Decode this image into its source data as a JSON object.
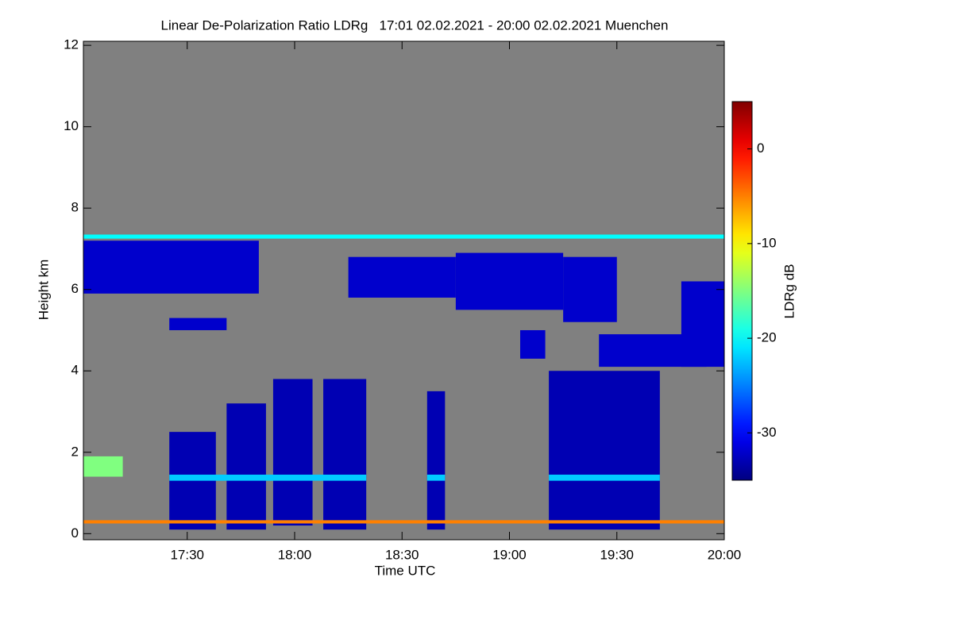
{
  "chart_data": {
    "type": "heatmap",
    "title": "Linear De-Polarization Ratio LDRg   17:01 02.02.2021 - 20:00 02.02.2021 Muenchen",
    "xlabel": "Time UTC",
    "ylabel": "Height km",
    "background": "#808080",
    "xlim": [
      "2021-02-02T17:01",
      "2021-02-02T20:00"
    ],
    "xticks": [
      {
        "value": "2021-02-02T17:30",
        "label": "17:30"
      },
      {
        "value": "2021-02-02T18:00",
        "label": "18:00"
      },
      {
        "value": "2021-02-02T18:30",
        "label": "18:30"
      },
      {
        "value": "2021-02-02T19:00",
        "label": "19:00"
      },
      {
        "value": "2021-02-02T19:30",
        "label": "19:30"
      },
      {
        "value": "2021-02-02T20:00",
        "label": "20:00"
      }
    ],
    "ylim": [
      -0.15,
      12.1
    ],
    "yticks": [
      0,
      2,
      4,
      6,
      8,
      10,
      12
    ],
    "colorbar": {
      "label": "LDRg dB",
      "lim": [
        -35,
        5
      ],
      "ticks": [
        0,
        -10,
        -20,
        -30
      ],
      "colormap": "jet"
    },
    "regions": [
      {
        "x": [
          "2021-02-02T17:01",
          "2021-02-02T20:00"
        ],
        "y": [
          7.25,
          7.35
        ],
        "value": -20
      },
      {
        "x": [
          "2021-02-02T17:01",
          "2021-02-02T17:50"
        ],
        "y": [
          5.9,
          7.2
        ],
        "value": -32
      },
      {
        "x": [
          "2021-02-02T17:25",
          "2021-02-02T17:41"
        ],
        "y": [
          5.0,
          5.3
        ],
        "value": -32
      },
      {
        "x": [
          "2021-02-02T18:15",
          "2021-02-02T18:45"
        ],
        "y": [
          5.8,
          6.8
        ],
        "value": -32
      },
      {
        "x": [
          "2021-02-02T18:45",
          "2021-02-02T19:15"
        ],
        "y": [
          5.5,
          6.9
        ],
        "value": -32
      },
      {
        "x": [
          "2021-02-02T19:15",
          "2021-02-02T19:30"
        ],
        "y": [
          5.2,
          6.8
        ],
        "value": -32
      },
      {
        "x": [
          "2021-02-02T19:03",
          "2021-02-02T19:10"
        ],
        "y": [
          4.3,
          5.0
        ],
        "value": -32
      },
      {
        "x": [
          "2021-02-02T19:25",
          "2021-02-02T19:55"
        ],
        "y": [
          4.1,
          4.9
        ],
        "value": -32
      },
      {
        "x": [
          "2021-02-02T19:48",
          "2021-02-02T20:00"
        ],
        "y": [
          4.1,
          6.2
        ],
        "value": -32
      },
      {
        "x": [
          "2021-02-02T17:01",
          "2021-02-02T17:12"
        ],
        "y": [
          1.4,
          1.9
        ],
        "value": -15
      },
      {
        "x": [
          "2021-02-02T17:25",
          "2021-02-02T17:38"
        ],
        "y": [
          0.1,
          2.5
        ],
        "value": -33
      },
      {
        "x": [
          "2021-02-02T17:41",
          "2021-02-02T17:52"
        ],
        "y": [
          0.1,
          3.2
        ],
        "value": -33
      },
      {
        "x": [
          "2021-02-02T17:54",
          "2021-02-02T18:05"
        ],
        "y": [
          0.2,
          3.8
        ],
        "value": -33
      },
      {
        "x": [
          "2021-02-02T18:08",
          "2021-02-02T18:20"
        ],
        "y": [
          0.1,
          3.8
        ],
        "value": -33
      },
      {
        "x": [
          "2021-02-02T18:37",
          "2021-02-02T18:42"
        ],
        "y": [
          0.1,
          3.5
        ],
        "value": -33
      },
      {
        "x": [
          "2021-02-02T19:11",
          "2021-02-02T19:42"
        ],
        "y": [
          0.1,
          4.0
        ],
        "value": -33
      },
      {
        "x": [
          "2021-02-02T17:25",
          "2021-02-02T18:20"
        ],
        "y": [
          1.3,
          1.45
        ],
        "value": -22
      },
      {
        "x": [
          "2021-02-02T18:37",
          "2021-02-02T18:42"
        ],
        "y": [
          1.3,
          1.45
        ],
        "value": -22
      },
      {
        "x": [
          "2021-02-02T19:11",
          "2021-02-02T19:42"
        ],
        "y": [
          1.3,
          1.45
        ],
        "value": -22
      },
      {
        "x": [
          "2021-02-02T17:01",
          "2021-02-02T20:00"
        ],
        "y": [
          0.25,
          0.33
        ],
        "value": -5
      }
    ]
  }
}
